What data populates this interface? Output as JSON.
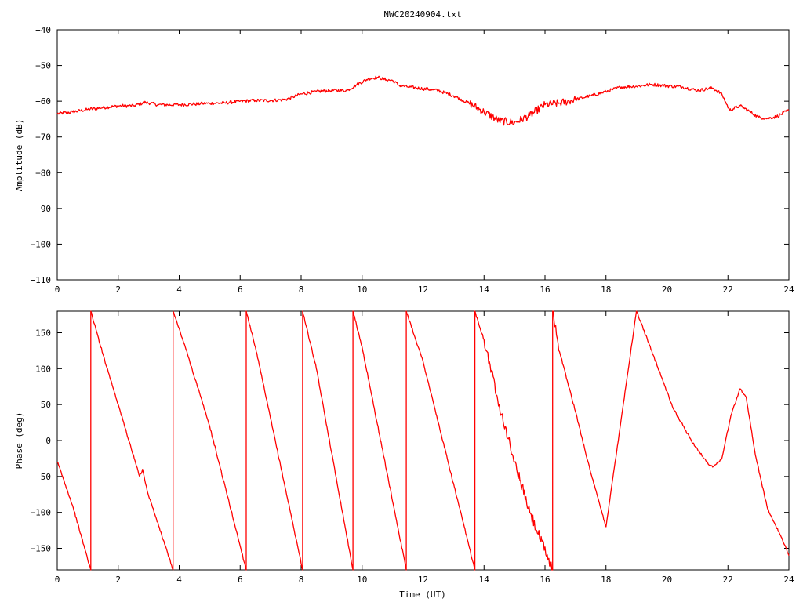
{
  "title": "NWC20240904.txt",
  "colors": {
    "series": "#ff0000",
    "axis": "#000000",
    "background": "#ffffff"
  },
  "chart_data": [
    {
      "type": "line",
      "xlabel": "",
      "ylabel": "Amplitude (dB)",
      "xlim": [
        0,
        24
      ],
      "ylim": [
        -110,
        -40
      ],
      "xticks": [
        "0",
        "2",
        "4",
        "6",
        "8",
        "10",
        "12",
        "14",
        "16",
        "18",
        "20",
        "22",
        "24"
      ],
      "yticks": [
        "-40",
        "-50",
        "-60",
        "-70",
        "-80",
        "-90",
        "-100",
        "-110"
      ],
      "grid": false,
      "series": [
        {
          "x": [
            0,
            0.5,
            1,
            1.5,
            2,
            2.5,
            2.9,
            3.3,
            4,
            4.5,
            5,
            5.5,
            6,
            6.5,
            7,
            7.5,
            8,
            8.5,
            9,
            9.5,
            9.8,
            10.2,
            10.5,
            10.8,
            11,
            11.2,
            11.5,
            12,
            12.5,
            13,
            13.5,
            14,
            14.5,
            15,
            15.5,
            16,
            16.5,
            17,
            17.5,
            18,
            18.5,
            19,
            19.5,
            20,
            20.5,
            21,
            21.5,
            21.8,
            22.05,
            22.4,
            22.7,
            23,
            23.3,
            23.6,
            24
          ],
          "values": [
            -63.5,
            -63,
            -62.3,
            -61.8,
            -61.3,
            -61.3,
            -60.3,
            -61,
            -61,
            -60.8,
            -60.6,
            -60.5,
            -60,
            -59.8,
            -59.8,
            -59.5,
            -58,
            -57.3,
            -57,
            -57,
            -55.5,
            -53.7,
            -53.3,
            -54,
            -54.2,
            -55.5,
            -56,
            -56.5,
            -57,
            -58.5,
            -60.5,
            -63,
            -65.5,
            -66,
            -64,
            -61,
            -60.5,
            -59.5,
            -58.5,
            -57.3,
            -56,
            -55.8,
            -55.3,
            -55.7,
            -56,
            -57,
            -56.3,
            -58,
            -62.5,
            -61.3,
            -62.8,
            -64.5,
            -64.8,
            -64.3,
            -62.5
          ]
        }
      ]
    },
    {
      "type": "line",
      "xlabel": "Time (UT)",
      "ylabel": "Phase (deg)",
      "xlim": [
        0,
        24
      ],
      "ylim": [
        -180,
        180
      ],
      "xticks": [
        "0",
        "2",
        "4",
        "6",
        "8",
        "10",
        "12",
        "14",
        "16",
        "18",
        "20",
        "22",
        "24"
      ],
      "yticks": [
        "150",
        "100",
        "50",
        "0",
        "-50",
        "-100",
        "-150"
      ],
      "grid": false,
      "series": [
        {
          "x": [
            0,
            0.05,
            0.5,
            1.1,
            1.1,
            1.5,
            2,
            2.7,
            2.8,
            2.95,
            3.8,
            3.8,
            4.2,
            5,
            6.2,
            6.2,
            6.5,
            8.05,
            8.05,
            8.5,
            9.7,
            9.7,
            10,
            11.45,
            11.45,
            12,
            13.7,
            13.7,
            14,
            14.5,
            15,
            15.5,
            16.25,
            16.25,
            16.5,
            17,
            17.5,
            18,
            19.0,
            19.0,
            19.5,
            20.2,
            20.8,
            21.3,
            21.5,
            21.8,
            22.1,
            22.4,
            22.6,
            22.9,
            23.3,
            23.7,
            24
          ],
          "values": [
            -30,
            -35,
            -90,
            -180,
            180,
            120,
            50,
            -50,
            -40,
            -70,
            -180,
            180,
            130,
            20,
            -180,
            180,
            130,
            -180,
            180,
            100,
            -180,
            180,
            130,
            -180,
            180,
            110,
            -180,
            180,
            140,
            50,
            -30,
            -100,
            -180,
            180,
            120,
            40,
            -45,
            -120,
            180,
            180,
            125,
            45,
            0,
            -30,
            -37,
            -25,
            35,
            72,
            60,
            -20,
            -95,
            -130,
            -160
          ]
        }
      ]
    }
  ]
}
